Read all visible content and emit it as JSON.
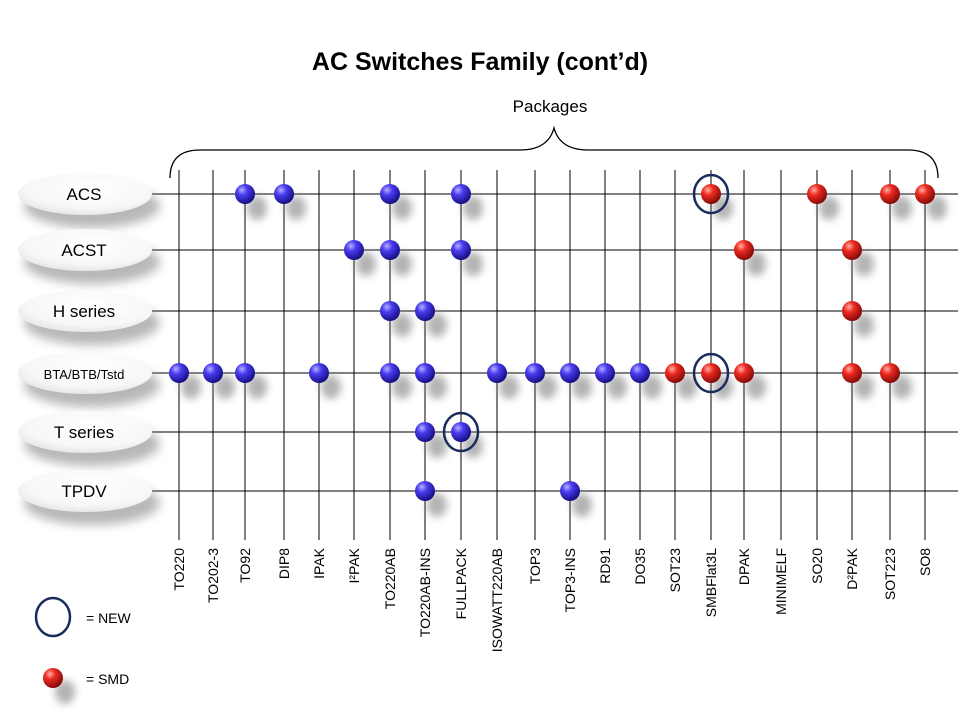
{
  "title": "AC Switches Family (cont’d)",
  "subtitle": "Packages",
  "colors": {
    "through_hole": "#2a1ee0",
    "smd": "#e01818",
    "new_ring": "#1a2c5c",
    "grid": "#000000"
  },
  "legend": {
    "new_label": "= NEW",
    "smd_label": "= SMD"
  },
  "chart_data": {
    "type": "table",
    "rows": [
      "ACS",
      "ACST",
      "H series",
      "BTA/BTB/Tstd",
      "T series",
      "TPDV"
    ],
    "columns": [
      "TO220",
      "TO202-3",
      "TO92",
      "DIP8",
      "IPAK",
      "I²PAK",
      "TO220AB",
      "TO220AB-INS",
      "FULLPACK",
      "ISOWATT220AB",
      "TOP3",
      "TOP3-INS",
      "RD91",
      "DO35",
      "SOT23",
      "SMBFlat3L",
      "DPAK",
      "MINIMELF",
      "SO20",
      "D²PAK",
      "SOT223",
      "SO8"
    ],
    "smd_columns": [
      "SOT23",
      "SMBFlat3L",
      "DPAK",
      "MINIMELF",
      "SO20",
      "D²PAK",
      "SOT223",
      "SO8"
    ],
    "availability": [
      {
        "row": "ACS",
        "packages": [
          "TO92",
          "DIP8",
          "TO220AB",
          "FULLPACK",
          "SMBFlat3L",
          "SO20",
          "SOT223",
          "SO8"
        ]
      },
      {
        "row": "ACST",
        "packages": [
          "I²PAK",
          "TO220AB",
          "FULLPACK",
          "DPAK",
          "D²PAK"
        ]
      },
      {
        "row": "H series",
        "packages": [
          "TO220AB",
          "TO220AB-INS",
          "D²PAK"
        ]
      },
      {
        "row": "BTA/BTB/Tstd",
        "packages": [
          "TO220",
          "TO202-3",
          "TO92",
          "IPAK",
          "TO220AB",
          "TO220AB-INS",
          "ISOWATT220AB",
          "TOP3",
          "TOP3-INS",
          "RD91",
          "DO35",
          "SOT23",
          "SMBFlat3L",
          "DPAK",
          "D²PAK",
          "SOT223"
        ]
      },
      {
        "row": "T series",
        "packages": [
          "TO220AB-INS",
          "FULLPACK"
        ]
      },
      {
        "row": "TPDV",
        "packages": [
          "TO220AB-INS",
          "TOP3-INS"
        ]
      }
    ],
    "new": [
      {
        "row": "ACS",
        "package": "SMBFlat3L"
      },
      {
        "row": "BTA/BTB/Tstd",
        "package": "SMBFlat3L"
      },
      {
        "row": "T series",
        "package": "FULLPACK"
      }
    ]
  }
}
